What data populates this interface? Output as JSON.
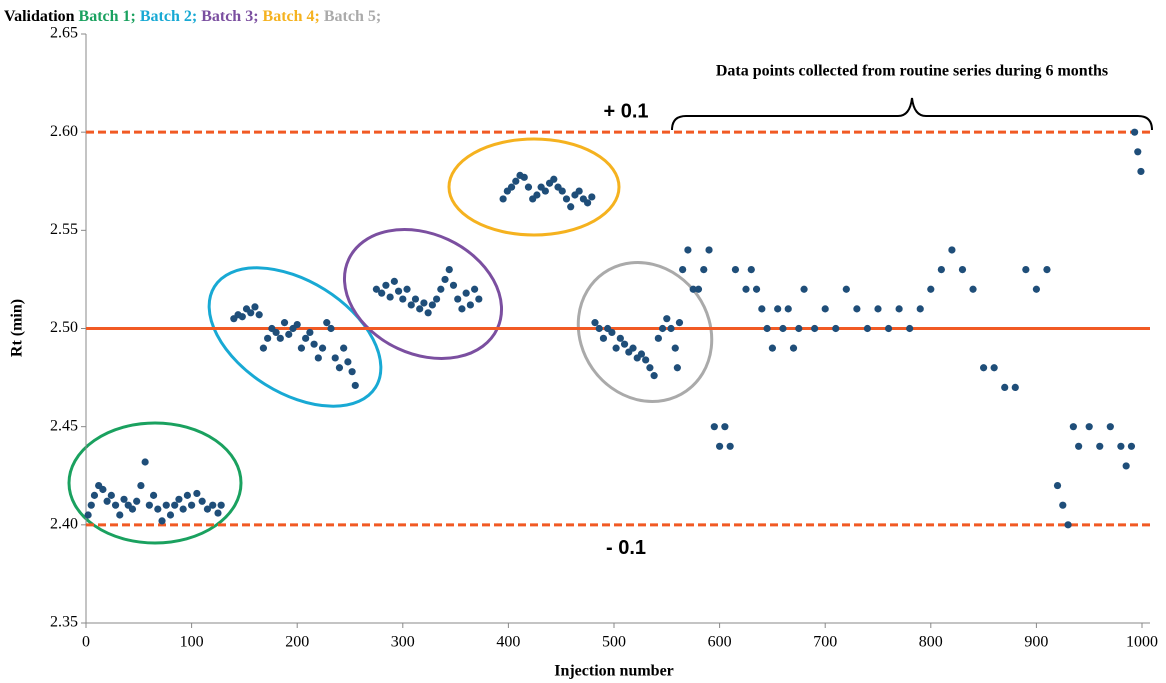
{
  "chart_data": {
    "type": "scatter",
    "title_parts": [
      {
        "text": "Validation",
        "color": "#000000"
      },
      {
        "text": "Batch 1;",
        "color": "#1aa15f"
      },
      {
        "text": "Batch 2;",
        "color": "#18a9d4"
      },
      {
        "text": "Batch 3;",
        "color": "#7b4fa0"
      },
      {
        "text": "Batch 4;",
        "color": "#f5b21f"
      },
      {
        "text": "Batch 5;",
        "color": "#aaaaaa"
      }
    ],
    "x_label": "Injection number",
    "y_label": "Rt (min)",
    "annotation": "Data points collected from routine series during 6 months",
    "xlim": [
      0,
      1000
    ],
    "xticks": [
      0,
      100,
      200,
      300,
      400,
      500,
      600,
      700,
      800,
      900,
      1000
    ],
    "ylim": [
      2.35,
      2.65
    ],
    "yticks": [
      2.35,
      {
        "value": 2.4,
        "label": "2.40"
      },
      2.45,
      {
        "value": 2.5,
        "label": "2.50"
      },
      2.55,
      {
        "value": 2.6,
        "label": "2.60"
      },
      2.65
    ],
    "reference_lines": [
      {
        "value": 2.6,
        "label": "+ 0.1",
        "style": "dashed",
        "color": "#f15a24"
      },
      {
        "value": 2.5,
        "style": "solid",
        "color": "#f15a24"
      },
      {
        "value": 2.4,
        "label": "- 0.1",
        "style": "dashed",
        "color": "#f15a24"
      }
    ],
    "x": [
      2,
      5,
      8,
      12,
      16,
      20,
      24,
      28,
      32,
      36,
      40,
      44,
      48,
      52,
      56,
      60,
      64,
      68,
      72,
      76,
      80,
      84,
      88,
      92,
      96,
      100,
      105,
      110,
      115,
      120,
      125,
      128,
      140,
      144,
      148,
      152,
      156,
      160,
      164,
      168,
      172,
      176,
      180,
      184,
      188,
      192,
      196,
      200,
      204,
      208,
      212,
      216,
      220,
      224,
      228,
      232,
      236,
      240,
      244,
      248,
      252,
      255,
      275,
      280,
      284,
      288,
      292,
      296,
      300,
      304,
      308,
      312,
      316,
      320,
      324,
      328,
      332,
      336,
      340,
      344,
      348,
      352,
      356,
      360,
      364,
      368,
      372,
      395,
      399,
      403,
      407,
      411,
      415,
      419,
      423,
      427,
      431,
      435,
      439,
      443,
      447,
      451,
      455,
      459,
      463,
      467,
      471,
      475,
      479,
      482,
      486,
      490,
      494,
      498,
      502,
      506,
      510,
      514,
      518,
      522,
      526,
      530,
      534,
      538,
      542,
      546,
      550,
      554,
      558,
      560,
      562,
      565,
      570,
      575,
      580,
      585,
      590,
      595,
      600,
      605,
      610,
      615,
      625,
      630,
      635,
      640,
      645,
      650,
      655,
      660,
      665,
      670,
      675,
      680,
      690,
      700,
      710,
      720,
      730,
      740,
      750,
      760,
      770,
      780,
      790,
      800,
      810,
      820,
      830,
      840,
      850,
      860,
      870,
      880,
      890,
      900,
      910,
      920,
      925,
      930,
      935,
      940,
      950,
      960,
      970,
      980,
      985,
      990,
      993,
      996,
      999
    ],
    "series": [
      {
        "name": "Rt",
        "color": "#1f4e79",
        "values": [
          2.405,
          2.41,
          2.415,
          2.42,
          2.418,
          2.412,
          2.415,
          2.41,
          2.405,
          2.413,
          2.41,
          2.408,
          2.412,
          2.42,
          2.432,
          2.41,
          2.415,
          2.408,
          2.402,
          2.41,
          2.405,
          2.41,
          2.413,
          2.408,
          2.415,
          2.41,
          2.416,
          2.412,
          2.408,
          2.41,
          2.406,
          2.41,
          2.505,
          2.507,
          2.506,
          2.51,
          2.508,
          2.511,
          2.507,
          2.49,
          2.495,
          2.5,
          2.498,
          2.495,
          2.503,
          2.497,
          2.5,
          2.502,
          2.49,
          2.495,
          2.498,
          2.492,
          2.485,
          2.49,
          2.503,
          2.5,
          2.485,
          2.48,
          2.49,
          2.483,
          2.478,
          2.471,
          2.52,
          2.518,
          2.522,
          2.516,
          2.524,
          2.519,
          2.515,
          2.52,
          2.512,
          2.515,
          2.51,
          2.513,
          2.508,
          2.512,
          2.515,
          2.52,
          2.525,
          2.53,
          2.522,
          2.515,
          2.51,
          2.518,
          2.512,
          2.52,
          2.515,
          2.566,
          2.57,
          2.572,
          2.575,
          2.578,
          2.577,
          2.572,
          2.566,
          2.568,
          2.572,
          2.57,
          2.574,
          2.576,
          2.572,
          2.57,
          2.566,
          2.562,
          2.568,
          2.57,
          2.566,
          2.564,
          2.567,
          2.503,
          2.5,
          2.495,
          2.5,
          2.498,
          2.49,
          2.495,
          2.492,
          2.488,
          2.49,
          2.485,
          2.487,
          2.484,
          2.48,
          2.476,
          2.495,
          2.5,
          2.505,
          2.5,
          2.49,
          2.48,
          2.503,
          2.53,
          2.54,
          2.52,
          2.52,
          2.53,
          2.54,
          2.45,
          2.44,
          2.45,
          2.44,
          2.53,
          2.52,
          2.53,
          2.52,
          2.51,
          2.5,
          2.49,
          2.51,
          2.5,
          2.51,
          2.49,
          2.5,
          2.52,
          2.5,
          2.51,
          2.5,
          2.52,
          2.51,
          2.5,
          2.51,
          2.5,
          2.51,
          2.5,
          2.51,
          2.52,
          2.53,
          2.54,
          2.53,
          2.52,
          2.48,
          2.48,
          2.47,
          2.47,
          2.53,
          2.52,
          2.53,
          2.42,
          2.41,
          2.4,
          2.45,
          2.44,
          2.45,
          2.44,
          2.45,
          2.44,
          2.43,
          2.44,
          2.6,
          2.59,
          2.58
        ]
      }
    ]
  }
}
